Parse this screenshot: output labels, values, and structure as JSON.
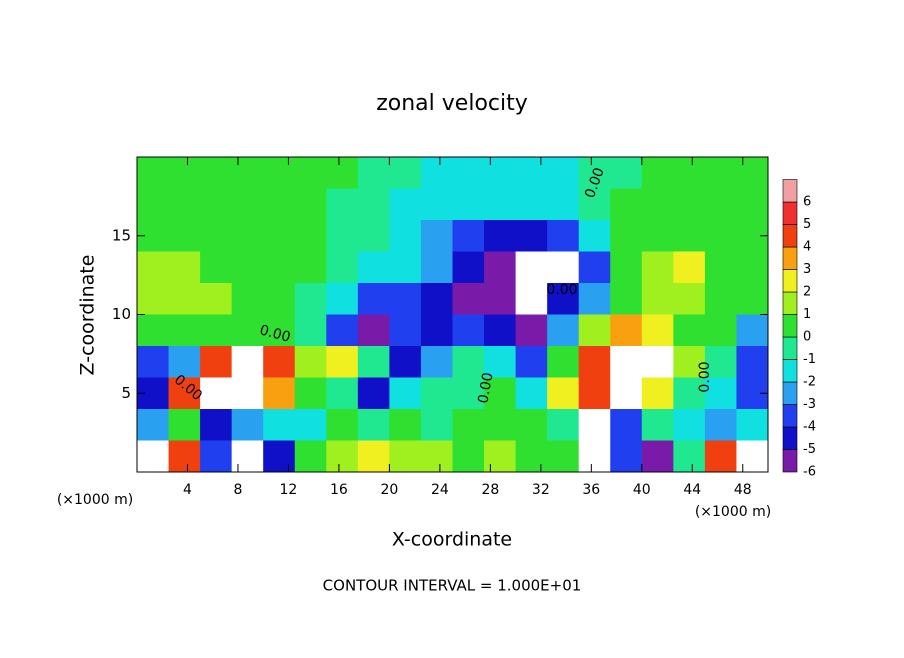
{
  "chart_data": {
    "type": "heatmap",
    "title": "zonal velocity",
    "x_label": "X-coordinate",
    "y_label": "Z-coordinate",
    "x_unit": "(×1000 m)",
    "x_unit_right": "(×1000 m)",
    "footnote": "CONTOUR INTERVAL = 1.000E+01",
    "xlim": [
      0,
      50
    ],
    "xticks": [
      4,
      8,
      12,
      16,
      20,
      24,
      28,
      32,
      36,
      40,
      44,
      48
    ],
    "ylim": [
      0,
      20
    ],
    "yticks": [
      5,
      10,
      15
    ],
    "x": [
      1.25,
      3.75,
      6.25,
      8.75,
      11.25,
      13.75,
      16.25,
      18.75,
      21.25,
      23.75,
      26.25,
      28.75,
      31.25,
      33.75,
      36.25,
      38.75,
      41.25,
      43.75,
      46.25,
      48.75
    ],
    "y": [
      19,
      17,
      15,
      13,
      11,
      9,
      7,
      5,
      3,
      1
    ],
    "z": [
      [
        0.5,
        0.5,
        0.5,
        0.5,
        0.5,
        0.3,
        0.3,
        0,
        -0.5,
        -1,
        -1.5,
        -1.5,
        -1.5,
        -1,
        -0.5,
        0,
        0.3,
        0.5,
        0.5,
        0.5
      ],
      [
        0.8,
        0.8,
        0.6,
        0.5,
        0.5,
        0.3,
        0,
        -0.5,
        -1,
        -1,
        -1,
        -1.5,
        -1.5,
        -1.5,
        -0.5,
        0.3,
        0.5,
        0.5,
        0.5,
        0.5
      ],
      [
        1,
        1,
        0.8,
        0.5,
        0.5,
        0.2,
        -0.3,
        -0.5,
        -1.5,
        -2,
        -3,
        -4,
        -4.5,
        -3,
        -1,
        0.3,
        0.5,
        1,
        0.5,
        0.5
      ],
      [
        1.5,
        1.2,
        1,
        0.8,
        0.5,
        0.3,
        0,
        -1,
        -1,
        -2,
        -4,
        -5,
        -7,
        -7,
        -3,
        0.5,
        2,
        3,
        1,
        0.5
      ],
      [
        2,
        1.5,
        1.2,
        0.8,
        0.5,
        0,
        -1,
        -3,
        -3,
        -4,
        -5,
        -6,
        -7,
        -4,
        -2,
        0.5,
        1.5,
        2,
        1,
        0.5
      ],
      [
        1,
        0.5,
        0.5,
        0.5,
        0.8,
        -0.5,
        -3,
        -5,
        -3.5,
        -4,
        -3,
        -4,
        -5,
        -2,
        2,
        4,
        3,
        1,
        0.5,
        -2
      ],
      [
        -3,
        -2,
        5,
        7,
        5,
        2,
        3,
        -0.5,
        -4,
        -2,
        -0.5,
        -1,
        -3,
        1,
        5,
        7,
        7,
        2,
        0,
        -3
      ],
      [
        -4,
        5,
        7,
        7,
        4,
        0.5,
        0,
        -4,
        -1,
        0,
        0,
        0.5,
        -1,
        3,
        5,
        7,
        3,
        0,
        -1,
        -3
      ],
      [
        -2,
        1,
        -4,
        -2,
        -1,
        -1,
        1,
        -0.5,
        0.5,
        0,
        0.5,
        1,
        1,
        0,
        7,
        -3,
        0,
        -1,
        -2,
        -1
      ],
      [
        7,
        5,
        -3,
        7,
        -4,
        1,
        2,
        3,
        2,
        2,
        1,
        2,
        1,
        1,
        7,
        -3,
        -5,
        0,
        5,
        7
      ]
    ],
    "colorbar": {
      "levels": [
        -6,
        -5,
        -4,
        -3,
        -2,
        -1,
        0,
        1,
        2,
        3,
        4,
        5,
        6
      ],
      "colors": [
        "#7a1aa8",
        "#1010c8",
        "#2040f0",
        "#2aa0f0",
        "#10e0e0",
        "#20e890",
        "#30e030",
        "#a0f020",
        "#f0f020",
        "#f8a010",
        "#f04010",
        "#f03030",
        "#f0a0a0"
      ],
      "outside_color": "#ffffff"
    },
    "contour_labels": [
      "0.00",
      "0.00",
      "0.00",
      "0.00",
      "0.00",
      "0.00"
    ]
  }
}
